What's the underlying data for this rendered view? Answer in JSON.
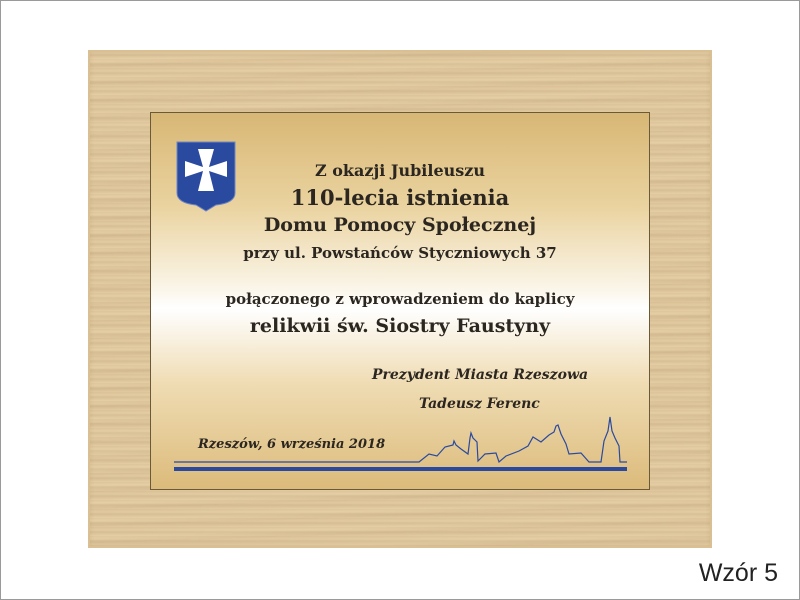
{
  "plaque": {
    "lines": [
      "Z okazji Jubileuszu",
      "110-lecia istnienia",
      "Domu Pomocy Społecznej",
      "przy ul. Powstańców Styczniowych 37",
      "połączonego z wprowadzeniem do kaplicy",
      "relikwii św. Siostry Faustyny"
    ],
    "signature_title": "Prezydent Miasta Rzeszowa",
    "signature_name": "Tadeusz Ferenc",
    "place_date": "Rzeszów, 6 września 2018",
    "emblem": "rzeszow-coat-of-arms-icon",
    "colors": {
      "accent_blue": "#2a4aa0",
      "text": "#2b2620",
      "wood": "#e6cfa6",
      "gold": "#d8b775"
    }
  },
  "caption": "Wzór 5"
}
